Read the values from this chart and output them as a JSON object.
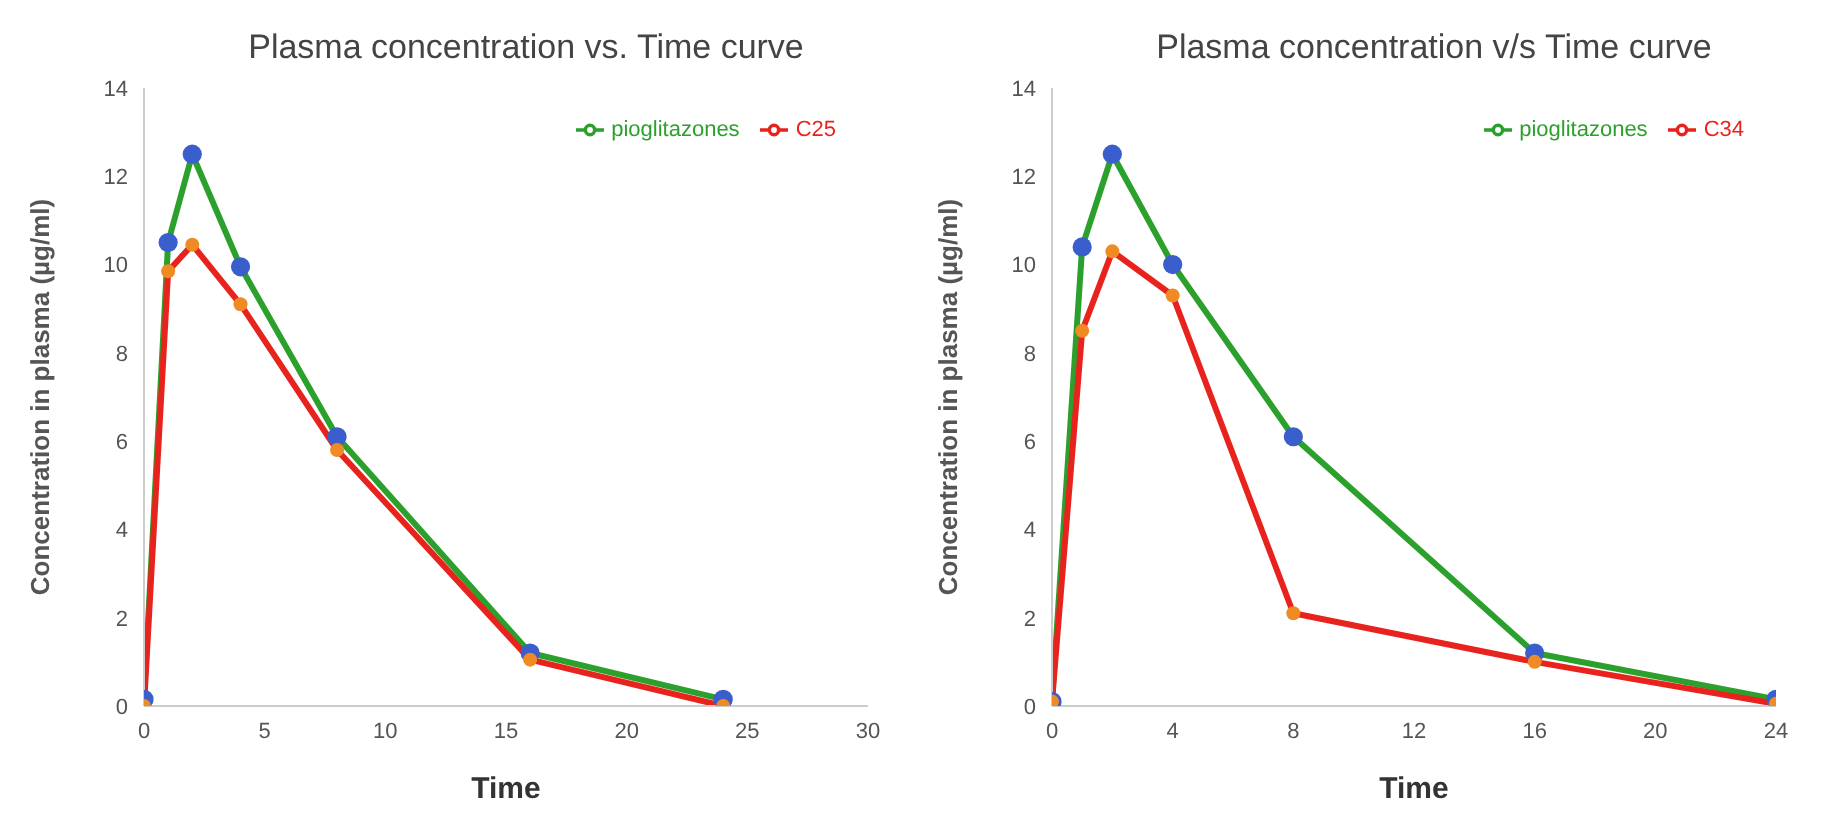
{
  "chart_data": [
    {
      "type": "line",
      "title": "Plasma concentration vs. Time curve",
      "xlabel": "Time",
      "ylabel": "Concentration in plasma (µg/ml)",
      "x": [
        0,
        1,
        2,
        4,
        8,
        16,
        24
      ],
      "xlim": [
        0,
        30
      ],
      "xticks": [
        0,
        5,
        10,
        15,
        20,
        25,
        30
      ],
      "ylim": [
        0,
        14
      ],
      "yticks": [
        0,
        2,
        4,
        6,
        8,
        10,
        12,
        14
      ],
      "grid": false,
      "legend": "top right",
      "marker": "circle",
      "series": [
        {
          "name": "pioglitazones",
          "color": "#2ca02c",
          "colors": [
            "#3a5fcd",
            "#3a5fcd",
            "#3a5fcd",
            "#3a5fcd",
            "#3a5fcd",
            "#3a5fcd",
            "#3a5fcd"
          ],
          "values": [
            0.15,
            10.5,
            12.5,
            9.95,
            6.1,
            1.2,
            0.15
          ]
        },
        {
          "name": "C25",
          "color": "#e8231e",
          "colors": [
            "#f08a24",
            "#f08a24",
            "#f08a24",
            "#f08a24",
            "#f08a24",
            "#f08a24",
            "#f08a24"
          ],
          "values": [
            0,
            9.85,
            10.45,
            9.1,
            5.8,
            1.05,
            0
          ]
        }
      ]
    },
    {
      "type": "line",
      "title": "Plasma concentration v/s Time curve",
      "xlabel": "Time",
      "ylabel": "Concentration in plasma (µg/ml)",
      "x": [
        0,
        1,
        2,
        4,
        8,
        16,
        24
      ],
      "xlim": [
        0,
        24
      ],
      "xticks": [
        0,
        4,
        8,
        12,
        16,
        20,
        24
      ],
      "ylim": [
        0,
        14
      ],
      "yticks": [
        0,
        2,
        4,
        6,
        8,
        10,
        12,
        14
      ],
      "grid": false,
      "legend": "top right",
      "marker": "circle",
      "series": [
        {
          "name": "pioglitazones",
          "color": "#2ca02c",
          "colors": [
            "#3a5fcd",
            "#3a5fcd",
            "#3a5fcd",
            "#3a5fcd",
            "#3a5fcd",
            "#3a5fcd",
            "#3a5fcd"
          ],
          "values": [
            0.1,
            10.4,
            12.5,
            10,
            6.1,
            1.2,
            0.15
          ]
        },
        {
          "name": "C34",
          "color": "#e8231e",
          "colors": [
            "#f08a24",
            "#f08a24",
            "#f08a24",
            "#f08a24",
            "#f08a24",
            "#f08a24",
            "#f08a24"
          ],
          "values": [
            0.1,
            8.5,
            10.3,
            9.3,
            2.1,
            1,
            0.05
          ]
        }
      ]
    }
  ]
}
